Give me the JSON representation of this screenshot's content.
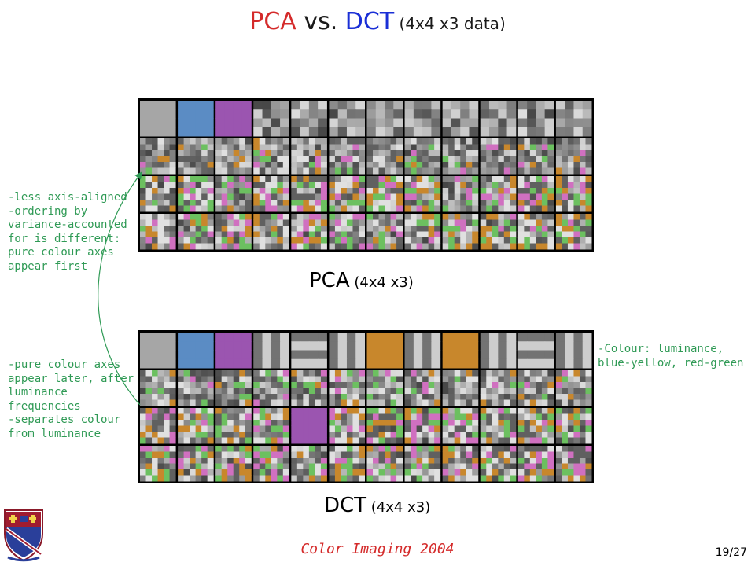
{
  "title": {
    "part1": "PCA",
    "part2": " vs. ",
    "part3": "DCT",
    "part4": " (4x4  x3 data)"
  },
  "pca_caption": {
    "main": "PCA",
    "sub": " (4x4  x3)"
  },
  "dct_caption": {
    "main": "DCT",
    "sub": " (4x4 x3)"
  },
  "note_pca": "-less axis-aligned\n-ordering by\nvariance-accounted\nfor is different:\npure colour axes\nappear first",
  "note_dct": "-pure colour axes\nappear later, after\nluminance\nfrequencies\n-separates colour\nfrom luminance",
  "note_colour": "-Colour: luminance,\nblue-yellow, red-green",
  "footer": "Color Imaging 2004",
  "page": "19/27",
  "colors": {
    "title_red": "#d42a2a",
    "title_blue": "#1a2fd6",
    "note_green": "#2f9a55",
    "footer_red": "#d42a2a"
  },
  "grids": {
    "columns": 12,
    "rows": 4,
    "palette": [
      "#a6a6a6",
      "#5b8cc4",
      "#9b55b0",
      "#c8872c",
      "#6cc060",
      "#d070c0",
      "#e0e0e0",
      "#606060",
      "#909090",
      "#3b7fd0",
      "#9a2fe0",
      "#e08030"
    ]
  }
}
